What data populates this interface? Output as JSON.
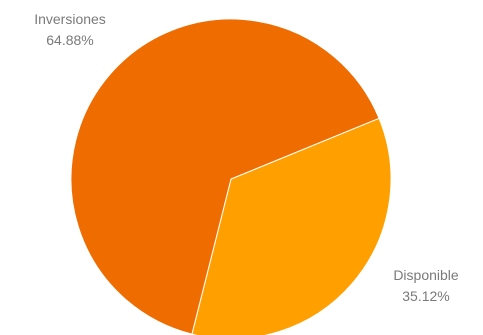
{
  "chart_data": {
    "type": "pie",
    "slices": [
      {
        "name": "Inversiones",
        "value": 64.88,
        "value_label": "64.88%",
        "color": "#ef6c00"
      },
      {
        "name": "Disponible",
        "value": 35.12,
        "value_label": "35.12%",
        "color": "#ffa000"
      }
    ],
    "unit": "%",
    "legend": "none"
  }
}
